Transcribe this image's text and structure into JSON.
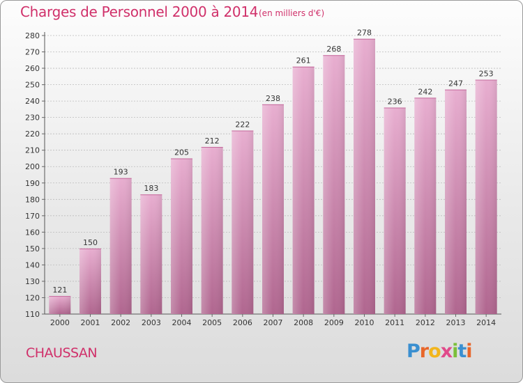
{
  "chart_data": {
    "type": "bar",
    "title": "Charges de Personnel 2000 à 2014",
    "subtitle": "(en milliers d'€)",
    "categories": [
      "2000",
      "2001",
      "2002",
      "2003",
      "2004",
      "2005",
      "2006",
      "2007",
      "2008",
      "2009",
      "2010",
      "2011",
      "2012",
      "2013",
      "2014"
    ],
    "values": [
      121,
      150,
      193,
      183,
      205,
      212,
      222,
      238,
      261,
      268,
      278,
      236,
      242,
      247,
      253
    ],
    "ylim": [
      110,
      280
    ],
    "yticks": [
      110,
      120,
      130,
      140,
      150,
      160,
      170,
      180,
      190,
      200,
      210,
      220,
      230,
      240,
      250,
      260,
      270,
      280
    ],
    "grid": true,
    "bar_color": "#d890b8"
  },
  "commune": "CHAUSSAN",
  "logo": {
    "letters": [
      "P",
      "r",
      "o",
      "x",
      "i",
      "t",
      "i"
    ],
    "colors": [
      "#3a8fd0",
      "#e8662a",
      "#f2b51c",
      "#e14a8a",
      "#7bbf3a",
      "#3a8fd0",
      "#e8662a"
    ]
  }
}
